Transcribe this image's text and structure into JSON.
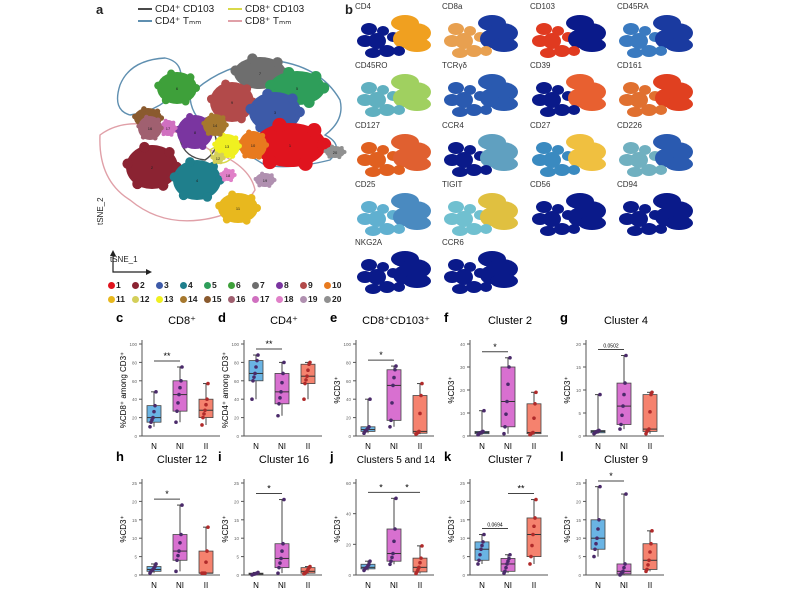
{
  "panel_a": {
    "letter": "a",
    "legend": [
      {
        "label": "CD4⁺ CD103",
        "color": "#4a4a4a"
      },
      {
        "label": "CD8⁺ CD103",
        "color": "#d9d94a"
      },
      {
        "label": "CD4⁺ Tₘₘ",
        "color": "#5f8fb0"
      },
      {
        "label": "CD8⁺ Tₘₘ",
        "color": "#e0a0a8"
      }
    ],
    "xaxis": "tSNE_1",
    "yaxis": "tSNE_2",
    "clusters": [
      {
        "id": "1",
        "color": "#e0141e"
      },
      {
        "id": "2",
        "color": "#8b2332"
      },
      {
        "id": "3",
        "color": "#3d5aa8"
      },
      {
        "id": "4",
        "color": "#1f7f8c"
      },
      {
        "id": "5",
        "color": "#2e9e5a"
      },
      {
        "id": "6",
        "color": "#3ea03a"
      },
      {
        "id": "7",
        "color": "#6e6e6e"
      },
      {
        "id": "8",
        "color": "#7a35a0"
      },
      {
        "id": "9",
        "color": "#b24a4a"
      },
      {
        "id": "10",
        "color": "#e87a1e"
      },
      {
        "id": "11",
        "color": "#e8b81e"
      },
      {
        "id": "12",
        "color": "#d4cf5a"
      },
      {
        "id": "13",
        "color": "#f0f020"
      },
      {
        "id": "14",
        "color": "#a6782e"
      },
      {
        "id": "15",
        "color": "#8a5a2e"
      },
      {
        "id": "16",
        "color": "#a06070"
      },
      {
        "id": "17",
        "color": "#d070c0"
      },
      {
        "id": "18",
        "color": "#e080c8"
      },
      {
        "id": "19",
        "color": "#b090b0"
      },
      {
        "id": "20",
        "color": "#909090"
      }
    ]
  },
  "panel_b": {
    "letter": "b",
    "markers": [
      {
        "name": "CD4",
        "left": "#0a1a8a",
        "right": "#f0a020"
      },
      {
        "name": "CD8a",
        "left": "#e8a050",
        "right": "#1a3aa0"
      },
      {
        "name": "CD103",
        "left": "#e03a20",
        "right": "#0a1a8a"
      },
      {
        "name": "CD45RA",
        "left": "#3a7ac0",
        "right": "#1a3aa0"
      },
      {
        "name": "CD45RO",
        "left": "#60b0c0",
        "right": "#a0d060"
      },
      {
        "name": "TCRγδ",
        "left": "#2a5ab0",
        "right": "#2a5ab0"
      },
      {
        "name": "CD39",
        "left": "#0a1a8a",
        "right": "#e86030"
      },
      {
        "name": "CD161",
        "left": "#e07030",
        "right": "#e04020"
      },
      {
        "name": "CD127",
        "left": "#e06020",
        "right": "#e06030"
      },
      {
        "name": "CCR4",
        "left": "#0a1a8a",
        "right": "#60a0c0"
      },
      {
        "name": "CD27",
        "left": "#3a8ac0",
        "right": "#f0c040"
      },
      {
        "name": "CD226",
        "left": "#70b0c0",
        "right": "#2a5ab0"
      },
      {
        "name": "CD25",
        "left": "#60b0d0",
        "right": "#4a8ac0"
      },
      {
        "name": "TIGIT",
        "left": "#70c0d0",
        "right": "#e0c040"
      },
      {
        "name": "CD56",
        "left": "#0a1a8a",
        "right": "#0a1a8a"
      },
      {
        "name": "CD94",
        "left": "#0a1a8a",
        "right": "#0a1a8a"
      },
      {
        "name": "NKG2A",
        "left": "#0a1a8a",
        "right": "#0a1a8a"
      },
      {
        "name": "CCR6",
        "left": "#0a1a8a",
        "right": "#0a1a8a"
      }
    ]
  },
  "groups": [
    "N",
    "NI",
    "II"
  ],
  "group_colors": {
    "N": "#6ab4e4",
    "NI": "#d870d0",
    "II": "#f5826e"
  },
  "chart_data": [
    {
      "type": "box",
      "letter": "c",
      "title": "CD8⁺",
      "ylabel": "%CD8⁺ among CD3⁺",
      "ylim": [
        0,
        100
      ],
      "yticks": [
        0,
        20,
        40,
        60,
        80,
        100
      ],
      "stats": {
        "N": [
          10,
          15,
          20,
          33,
          48
        ],
        "NI": [
          15,
          27,
          45,
          60,
          75
        ],
        "II": [
          12,
          20,
          28,
          40,
          57
        ]
      },
      "significance": [
        {
          "pair": [
            "N",
            "NI"
          ],
          "label": "**"
        }
      ]
    },
    {
      "type": "box",
      "letter": "d",
      "title": "CD4⁺",
      "ylabel": "%CD4⁺ among CD3⁺",
      "ylim": [
        0,
        100
      ],
      "yticks": [
        0,
        20,
        40,
        60,
        80,
        100
      ],
      "stats": {
        "N": [
          40,
          60,
          68,
          82,
          88
        ],
        "NI": [
          22,
          35,
          48,
          68,
          80
        ],
        "II": [
          40,
          57,
          65,
          78,
          80
        ]
      },
      "significance": [
        {
          "pair": [
            "N",
            "NI"
          ],
          "label": "**"
        }
      ]
    },
    {
      "type": "box",
      "letter": "e",
      "title": "CD8⁺CD103⁺",
      "ylabel": "%CD3⁺",
      "ylim": [
        0,
        100
      ],
      "yticks": [
        0,
        20,
        40,
        60,
        80,
        100
      ],
      "stats": {
        "N": [
          3,
          5,
          7,
          10,
          40
        ],
        "NI": [
          10,
          17,
          55,
          72,
          76
        ],
        "II": [
          2,
          3,
          5,
          44,
          57
        ]
      },
      "significance": [
        {
          "pair": [
            "N",
            "NI"
          ],
          "label": "*"
        }
      ]
    },
    {
      "type": "box",
      "letter": "f",
      "title": "Cluster 2",
      "ylabel": "%CD3⁺",
      "ylim": [
        0,
        40
      ],
      "yticks": [
        0,
        10,
        20,
        30,
        40
      ],
      "stats": {
        "N": [
          0.5,
          1,
          1.5,
          2,
          11
        ],
        "NI": [
          1,
          4,
          15,
          30,
          34
        ],
        "II": [
          0.5,
          1,
          1.5,
          14,
          19
        ]
      },
      "significance": [
        {
          "pair": [
            "N",
            "NI"
          ],
          "label": "*"
        }
      ]
    },
    {
      "type": "box",
      "letter": "g",
      "title": "Cluster 4",
      "ylabel": "%CD3⁺",
      "ylim": [
        0,
        20
      ],
      "yticks": [
        0,
        5,
        10,
        15,
        20
      ],
      "stats": {
        "N": [
          0.5,
          0.7,
          1,
          1.2,
          9
        ],
        "NI": [
          1.5,
          2.5,
          6.5,
          11.5,
          17.5
        ],
        "II": [
          0.5,
          1,
          1.5,
          9,
          9.5
        ]
      },
      "significance": [
        {
          "pair": [
            "N",
            "NI"
          ],
          "label": "0.0502"
        }
      ]
    },
    {
      "type": "box",
      "letter": "h",
      "title": "Cluster 12",
      "ylabel": "%CD3⁺",
      "ylim": [
        0,
        25
      ],
      "yticks": [
        0,
        5,
        10,
        15,
        20,
        25
      ],
      "stats": {
        "N": [
          0.5,
          1,
          1.5,
          2.3,
          3
        ],
        "NI": [
          1,
          4,
          6.5,
          11,
          19
        ],
        "II": [
          0.5,
          0.5,
          0.5,
          6.5,
          13
        ]
      },
      "significance": [
        {
          "pair": [
            "N",
            "NI"
          ],
          "label": "*"
        }
      ]
    },
    {
      "type": "box",
      "letter": "i",
      "title": "Cluster 16",
      "ylabel": "%CD3⁺",
      "ylim": [
        0,
        25
      ],
      "yticks": [
        0,
        5,
        10,
        15,
        20,
        25
      ],
      "stats": {
        "N": [
          0,
          0.2,
          0.3,
          0.5,
          0.7
        ],
        "NI": [
          0.5,
          2,
          4.5,
          8.5,
          20.5
        ],
        "II": [
          0.3,
          0.5,
          1,
          2,
          2.3
        ]
      },
      "significance": [
        {
          "pair": [
            "N",
            "NI"
          ],
          "label": "*"
        }
      ]
    },
    {
      "type": "box",
      "letter": "j",
      "title": "Clusters 5 and 14",
      "ylabel": "%CD3⁺",
      "ylim": [
        0,
        60
      ],
      "yticks": [
        0,
        20,
        40,
        60
      ],
      "stats": {
        "N": [
          3,
          4,
          5,
          7,
          9
        ],
        "NI": [
          7,
          9,
          14,
          30,
          50
        ],
        "II": [
          1,
          2,
          5,
          11,
          19
        ]
      },
      "significance": [
        {
          "pair": [
            "N",
            "NI"
          ],
          "label": "*"
        },
        {
          "pair": [
            "NI",
            "II"
          ],
          "label": "*"
        }
      ]
    },
    {
      "type": "box",
      "letter": "k",
      "title": "Cluster 7",
      "ylabel": "%CD3⁺",
      "ylim": [
        0,
        25
      ],
      "yticks": [
        0,
        5,
        10,
        15,
        20,
        25
      ],
      "stats": {
        "N": [
          3,
          4,
          7,
          9,
          11
        ],
        "NI": [
          0.5,
          1,
          3,
          4.5,
          5.5
        ],
        "II": [
          3,
          5,
          11,
          15.5,
          20.5
        ]
      },
      "significance": [
        {
          "pair": [
            "N",
            "NI"
          ],
          "label": "0.0694"
        },
        {
          "pair": [
            "NI",
            "II"
          ],
          "label": "**"
        }
      ]
    },
    {
      "type": "box",
      "letter": "l",
      "title": "Cluster 9",
      "ylabel": "%CD3⁺",
      "ylim": [
        0,
        25
      ],
      "yticks": [
        0,
        5,
        10,
        15,
        20,
        25
      ],
      "stats": {
        "N": [
          5,
          7,
          10,
          15,
          24
        ],
        "NI": [
          0,
          0.3,
          1,
          3,
          22
        ],
        "II": [
          1,
          1.5,
          4,
          8.5,
          12
        ]
      },
      "significance": [
        {
          "pair": [
            "N",
            "NI"
          ],
          "label": "*"
        }
      ]
    }
  ]
}
